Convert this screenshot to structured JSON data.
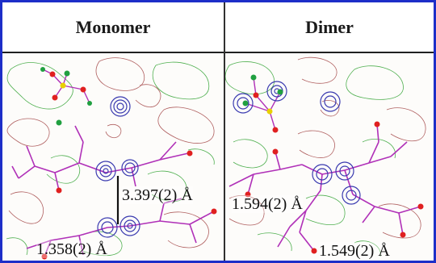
{
  "headers": {
    "monomer": "Monomer",
    "dimer": "Dimer"
  },
  "labels": {
    "monomer_distance_1": "3.397(2) Å",
    "monomer_distance_2": "1.358(2) Å",
    "dimer_distance_1": "1.594(2) Å",
    "dimer_distance_2": "1.549(2) Å"
  },
  "colors": {
    "frame_border": "#1d2ec8",
    "bond": "#b030b8",
    "contour_positive": "#b06060",
    "contour_negative": "#50b050",
    "atom_oxygen": "#e02020",
    "atom_chlorine": "#20a040",
    "atom_sulfur": "#e8d000",
    "ring_contour": "#3a3ab0"
  }
}
